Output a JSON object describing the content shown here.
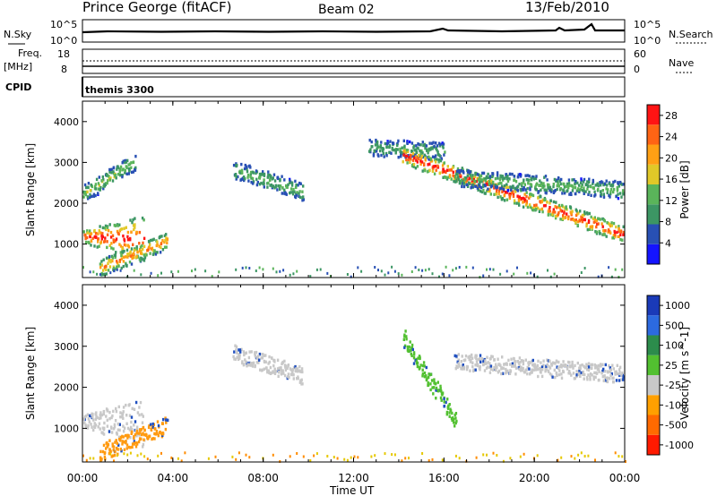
{
  "header": {
    "title": "Prince George (fitACF)",
    "beam": "Beam 02",
    "date": "13/Feb/2010"
  },
  "noise_panel": {
    "left_label": "N.Sky",
    "right_label": "N.Search",
    "left_ticks": [
      "10^5",
      "10^0"
    ],
    "right_ticks": [
      "10^5",
      "10^0"
    ]
  },
  "freq_panel": {
    "left_label_line1": "Freq.",
    "left_label_line2": "[MHz]",
    "right_label": "Nave",
    "left_ticks": [
      "18",
      "8"
    ],
    "right_ticks": [
      "60",
      "0"
    ]
  },
  "cpid": {
    "label": "CPID",
    "program": "themis 3300"
  },
  "x_axis": {
    "label": "Time UT",
    "ticks": [
      "00:00",
      "04:00",
      "08:00",
      "12:00",
      "16:00",
      "20:00",
      "00:00"
    ],
    "range_hours": [
      0,
      24
    ]
  },
  "colors": {
    "grey_velocity": "#c8c8c8",
    "power_high": "#ff0000",
    "velocity_negative": "#ff8c00",
    "velocity_positive": "#2050c0"
  },
  "chart_data": [
    {
      "type": "heatmap",
      "title": "",
      "xlabel": "Time UT",
      "ylabel": "Slant Range [km]",
      "xlim": [
        0,
        24
      ],
      "ylim": [
        180,
        4500
      ],
      "y_ticks": [
        1000,
        2000,
        3000,
        4000
      ],
      "colorbar": {
        "label": "Power [dB]",
        "ticks": [
          "4",
          "8",
          "12",
          "16",
          "20",
          "24",
          "28"
        ],
        "range": [
          0,
          30
        ],
        "colors": [
          "#1414ff",
          "#2850b4",
          "#3c9664",
          "#5ab45a",
          "#e1c828",
          "#ffa014",
          "#ff6414",
          "#ff1414"
        ]
      },
      "echo_regions": [
        {
          "t": [
            0.0,
            2.7
          ],
          "r0": [
            1220,
            1150
          ],
          "r1": [
            1280,
            2050
          ],
          "peak_db": 28
        },
        {
          "t": [
            0.0,
            2.3
          ],
          "r0": [
            2250,
            3050
          ],
          "peak_db": 14
        },
        {
          "t": [
            0.8,
            3.7
          ],
          "r0": [
            450,
            1100
          ],
          "peak_db": 22
        },
        {
          "t": [
            6.7,
            9.8
          ],
          "r0": [
            2850,
            2300
          ],
          "peak_db": 12
        },
        {
          "t": [
            12.7,
            16.0
          ],
          "r0": [
            3400,
            3300
          ],
          "peak_db": 10
        },
        {
          "t": [
            14.2,
            24.0
          ],
          "r0": [
            3200,
            1250
          ],
          "peak_db": 28
        },
        {
          "t": [
            16.5,
            24.0
          ],
          "r0": [
            2650,
            2350
          ],
          "peak_db": 12
        }
      ]
    },
    {
      "type": "heatmap",
      "title": "",
      "xlabel": "Time UT",
      "ylabel": "Slant Range [km]",
      "xlim": [
        0,
        24
      ],
      "ylim": [
        180,
        4500
      ],
      "y_ticks": [
        1000,
        2000,
        3000,
        4000
      ],
      "colorbar": {
        "label": "Velocity [m s^-1]",
        "ticks": [
          "1000",
          "500",
          "100",
          "25",
          "-25",
          "-100",
          "-500",
          "-1000"
        ],
        "colors": [
          "#1a3ab8",
          "#2c6ae0",
          "#2c8c4c",
          "#52c030",
          "#c8c8c8",
          "#ffa000",
          "#ff6a00",
          "#ff1a00"
        ]
      },
      "echo_regions": [
        {
          "t": [
            0.0,
            2.7
          ],
          "v": 0,
          "color": "#c8c8c8"
        },
        {
          "t": [
            0.8,
            3.7
          ],
          "v": -300,
          "color": "#ff9a10"
        },
        {
          "t": [
            6.7,
            9.8
          ],
          "v": 0,
          "color": "#c8c8c8"
        },
        {
          "t": [
            14.2,
            16.5
          ],
          "v": 150,
          "color": "#52c030"
        },
        {
          "t": [
            16.5,
            24.0
          ],
          "v": 0,
          "color": "#c8c8c8"
        }
      ]
    }
  ]
}
